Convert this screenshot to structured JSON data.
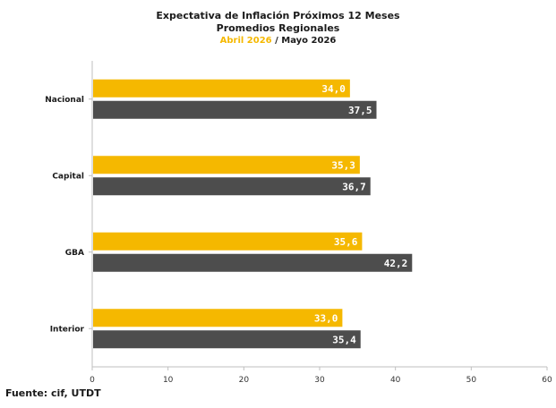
{
  "title": "Expectativa de Inflación Próximos 12 Meses",
  "subtitle": "Promedios Regionales",
  "period_a": "Abril 2026",
  "separator": " / ",
  "period_b": "Mayo 2026",
  "source": "Fuente: cif, UTDT",
  "colors": {
    "abril": "#f5b800",
    "mayo": "#4d4d4d",
    "axis": "#bfbfbf"
  },
  "chart_data": {
    "type": "bar",
    "orientation": "horizontal",
    "categories": [
      "Nacional",
      "Capital",
      "GBA",
      "Interior"
    ],
    "series": [
      {
        "name": "Abril 2026",
        "values": [
          34.0,
          35.3,
          35.6,
          33.0
        ],
        "labels": [
          "34,0",
          "35,3",
          "35,6",
          "33,0"
        ]
      },
      {
        "name": "Mayo 2026",
        "values": [
          37.5,
          36.7,
          42.2,
          35.4
        ],
        "labels": [
          "37,5",
          "36,7",
          "42,2",
          "35,4"
        ]
      }
    ],
    "xlim": [
      0,
      60
    ],
    "xticks": [
      0,
      10,
      20,
      30,
      40,
      50,
      60
    ],
    "grid": false,
    "legend": "none"
  }
}
